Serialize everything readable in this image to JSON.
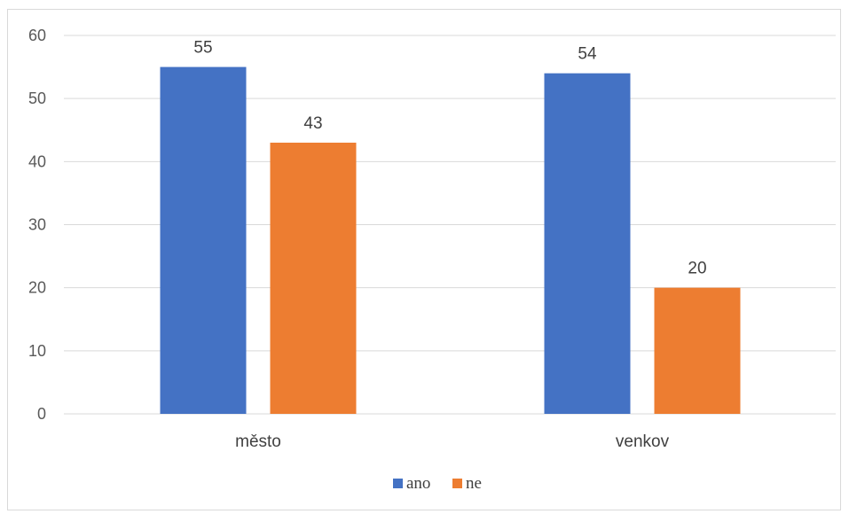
{
  "chart_data": {
    "type": "bar",
    "categories": [
      "město",
      "venkov"
    ],
    "series": [
      {
        "name": "ano",
        "values": [
          55,
          54
        ],
        "color": "#4472C4"
      },
      {
        "name": "ne",
        "values": [
          43,
          20
        ],
        "color": "#ED7D31"
      }
    ],
    "ylim": [
      0,
      60
    ],
    "yticks": [
      0,
      10,
      20,
      30,
      40,
      50,
      60
    ],
    "grid": true,
    "legend": "bottom",
    "data_labels": true
  }
}
